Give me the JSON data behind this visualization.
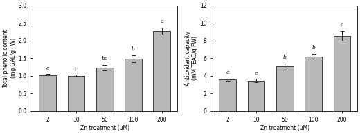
{
  "left": {
    "categories": [
      "2",
      "10",
      "50",
      "100",
      "200"
    ],
    "values": [
      1.01,
      1.0,
      1.23,
      1.49,
      2.27
    ],
    "errors": [
      0.04,
      0.03,
      0.08,
      0.1,
      0.1
    ],
    "letters": [
      "c",
      "c",
      "bc",
      "b",
      "a"
    ],
    "ylabel": "Total phenolic content\n(mg GAE/g FW)",
    "xlabel": "Zn treatment (μM)",
    "ylim": [
      0,
      3.0
    ],
    "yticks": [
      0.0,
      0.5,
      1.0,
      1.5,
      2.0,
      2.5,
      3.0
    ]
  },
  "right": {
    "categories": [
      "2",
      "10",
      "50",
      "100",
      "200"
    ],
    "values": [
      3.55,
      3.45,
      5.05,
      6.2,
      8.55
    ],
    "errors": [
      0.15,
      0.2,
      0.35,
      0.3,
      0.55
    ],
    "letters": [
      "c",
      "c",
      "b",
      "b",
      "a"
    ],
    "ylabel": "Antioxidant capacity\n(mM TEAC/g FW)",
    "xlabel": "Zn treatment (μM)",
    "ylim": [
      0,
      12
    ],
    "yticks": [
      0,
      2,
      4,
      6,
      8,
      10,
      12
    ]
  },
  "bar_color": "#b8b8b8",
  "bar_edgecolor": "#222222",
  "bar_width": 0.6,
  "letter_fontsize": 5.5,
  "axis_label_fontsize": 5.5,
  "tick_fontsize": 5.5,
  "background_color": "#ffffff"
}
